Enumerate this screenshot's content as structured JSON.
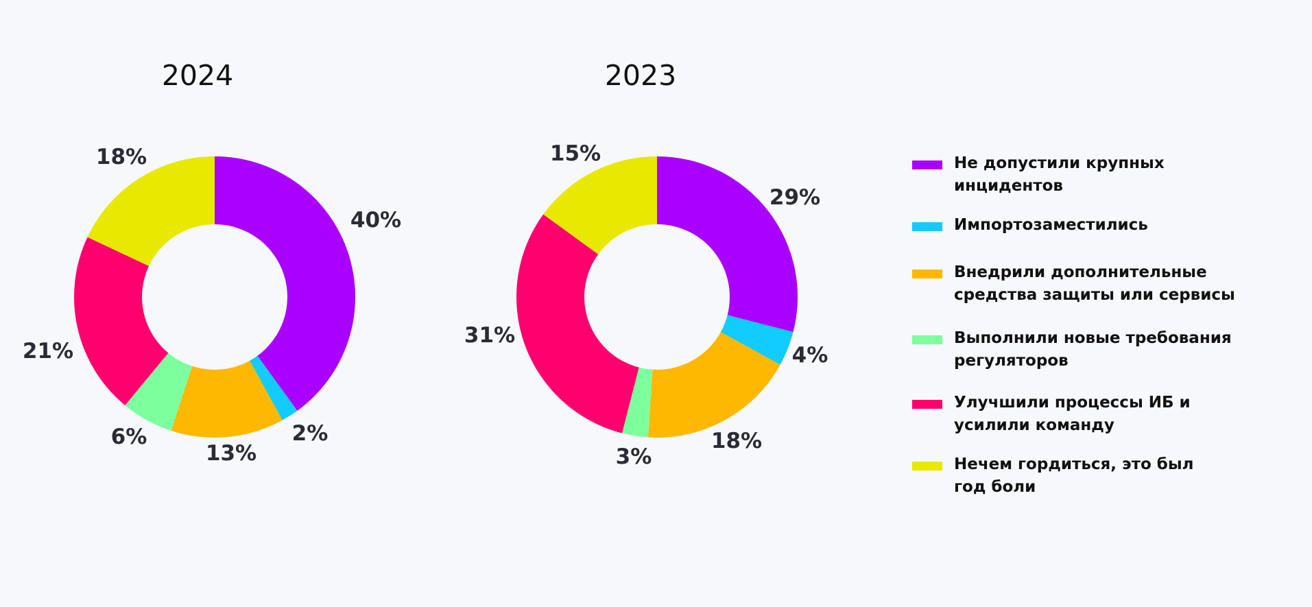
{
  "chart_data": [
    {
      "type": "pie",
      "title": "2024",
      "categories": [
        "Не допустили крупных инцидентов",
        "Импортозаместились",
        "Внедрили дополнительные средства защиты или сервисы",
        "Выполнили новые требования регуляторов",
        "Улучшили процессы ИБ и усилили команду",
        "Нечем гордиться, это был год боли"
      ],
      "values": [
        40,
        2,
        13,
        6,
        21,
        18
      ],
      "labels": [
        "40%",
        "2%",
        "13%",
        "6%",
        "21%",
        "18%"
      ]
    },
    {
      "type": "pie",
      "title": "2023",
      "categories": [
        "Не допустили крупных инцидентов",
        "Импортозаместились",
        "Внедрили дополнительные средства защиты или сервисы",
        "Выполнили новые требования регуляторов",
        "Улучшили процессы ИБ и усилили команду",
        "Нечем гордиться, это был год боли"
      ],
      "values": [
        29,
        4,
        18,
        3,
        31,
        15
      ],
      "labels": [
        "29%",
        "4%",
        "18%",
        "3%",
        "31%",
        "15%"
      ]
    }
  ],
  "legend": {
    "placement": "right",
    "items": [
      {
        "label": "Не допустили крупных инцидентов",
        "color": "#AA00FF"
      },
      {
        "label": "Импортозаместились",
        "color": "#12CCFF"
      },
      {
        "label": "Внедрили дополнительные средства защиты или сервисы",
        "color": "#FFB800"
      },
      {
        "label": "Выполнили новые требования регуляторов",
        "color": "#7DFF9E"
      },
      {
        "label": "Улучшили процессы ИБ и усилили команду",
        "color": "#FF006E"
      },
      {
        "label": "Нечем гордиться, это был год боли",
        "color": "#E8E800"
      }
    ]
  }
}
